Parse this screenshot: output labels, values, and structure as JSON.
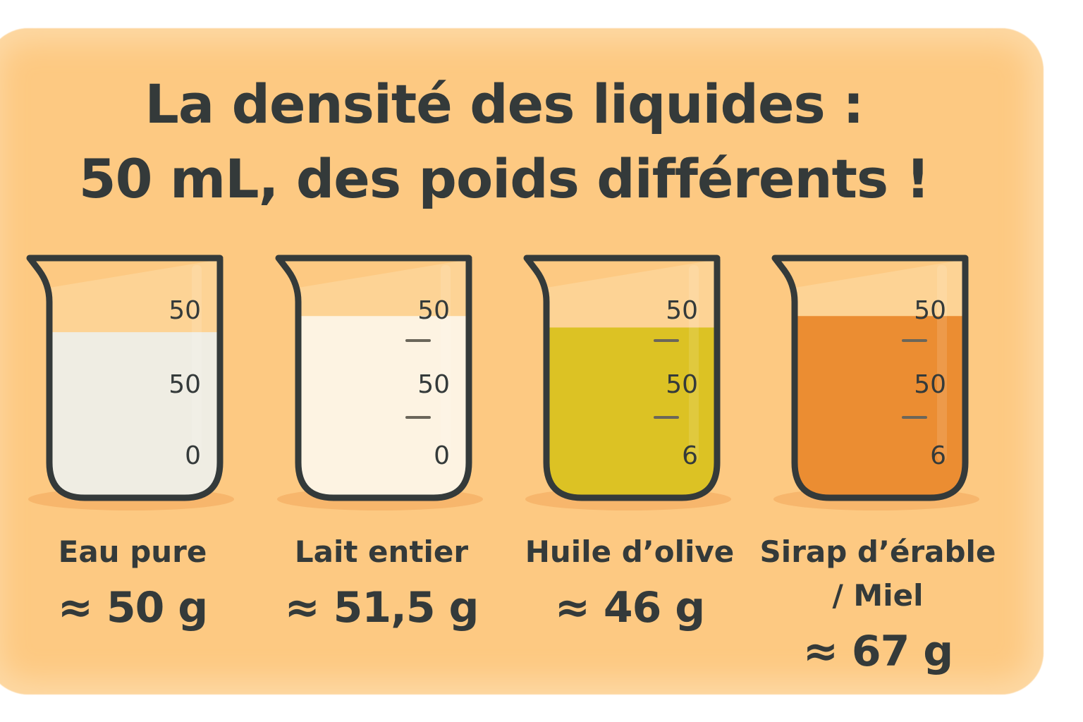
{
  "title": {
    "line1": "La densité des liquides :",
    "line2": "50 mL, des poids différents !"
  },
  "colors": {
    "background": "#fdc982",
    "outline": "#343a3a",
    "text": "#343a3a"
  },
  "beakers": [
    {
      "name": "Eau pure",
      "name2": "",
      "value": "≈ 50 g",
      "liquid_color": "#efede3",
      "fill_level": 0.7,
      "scale": [
        "50",
        "50",
        "0"
      ],
      "ticks": false
    },
    {
      "name": "Lait entier",
      "name2": "",
      "value": "≈ 51,5 g",
      "liquid_color": "#fdf3e2",
      "fill_level": 0.77,
      "scale": [
        "50",
        "50",
        "0"
      ],
      "ticks": true
    },
    {
      "name": "Huile d’olive",
      "name2": "",
      "value": "≈ 46 g",
      "liquid_color": "#dcc224",
      "fill_level": 0.72,
      "scale": [
        "50",
        "50",
        "6"
      ],
      "ticks": true
    },
    {
      "name": "Sirap d’érable",
      "name2": "/ Miel",
      "value": "≈ 67 g",
      "liquid_color": "#eb8d32",
      "fill_level": 0.77,
      "scale": [
        "50",
        "50",
        "6"
      ],
      "ticks": true
    }
  ]
}
